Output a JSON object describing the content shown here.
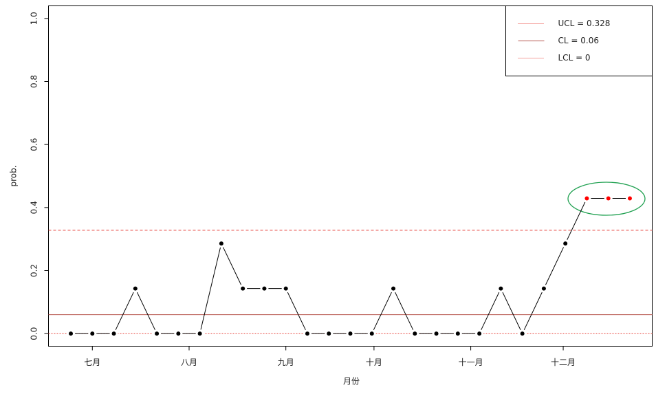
{
  "chart_data": {
    "type": "line",
    "x_label": "月份",
    "y_label": "prob.",
    "x": [
      1,
      2,
      3,
      4,
      5,
      6,
      7,
      8,
      9,
      10,
      11,
      12,
      13,
      14,
      15,
      16,
      17,
      18,
      19,
      20,
      21,
      22,
      23,
      24,
      25,
      26,
      27
    ],
    "series": [
      {
        "color": "#000000",
        "out_color": "#ff0000",
        "values": [
          0,
          0,
          0,
          0.143,
          0,
          0,
          0,
          0.286,
          0.143,
          0.143,
          0.143,
          0,
          0,
          0,
          0,
          0.143,
          0,
          0,
          0,
          0,
          0.143,
          0,
          0.143,
          0.286,
          0.429,
          0.429,
          0.429
        ]
      }
    ],
    "control_limits": [
      {
        "name": "UCL = 0.328",
        "value": 0.328,
        "color": "#e8403a",
        "dash": "4 3"
      },
      {
        "name": "CL  = 0.06",
        "value": 0.06,
        "color": "#b5524a",
        "dash": "none"
      },
      {
        "name": "LCL = 0",
        "value": 0,
        "color": "#e8403a",
        "dash": "2 2"
      }
    ],
    "xlim": [
      -0.04,
      28.04
    ],
    "ylim": [
      -0.04,
      1.04
    ],
    "xticks": [
      {
        "value": 2,
        "label": "七月"
      },
      {
        "value": 6.5,
        "label": "八月"
      },
      {
        "value": 11,
        "label": "九月"
      },
      {
        "value": 15.1,
        "label": "十月"
      },
      {
        "value": 19.6,
        "label": "十一月"
      },
      {
        "value": 23.9,
        "label": "十二月"
      }
    ],
    "yticks": [
      {
        "value": 0,
        "label": "0.0"
      },
      0.2,
      0.4,
      0.6,
      0.8,
      {
        "value": 1,
        "label": "1.0"
      }
    ],
    "legend": "top-right"
  }
}
